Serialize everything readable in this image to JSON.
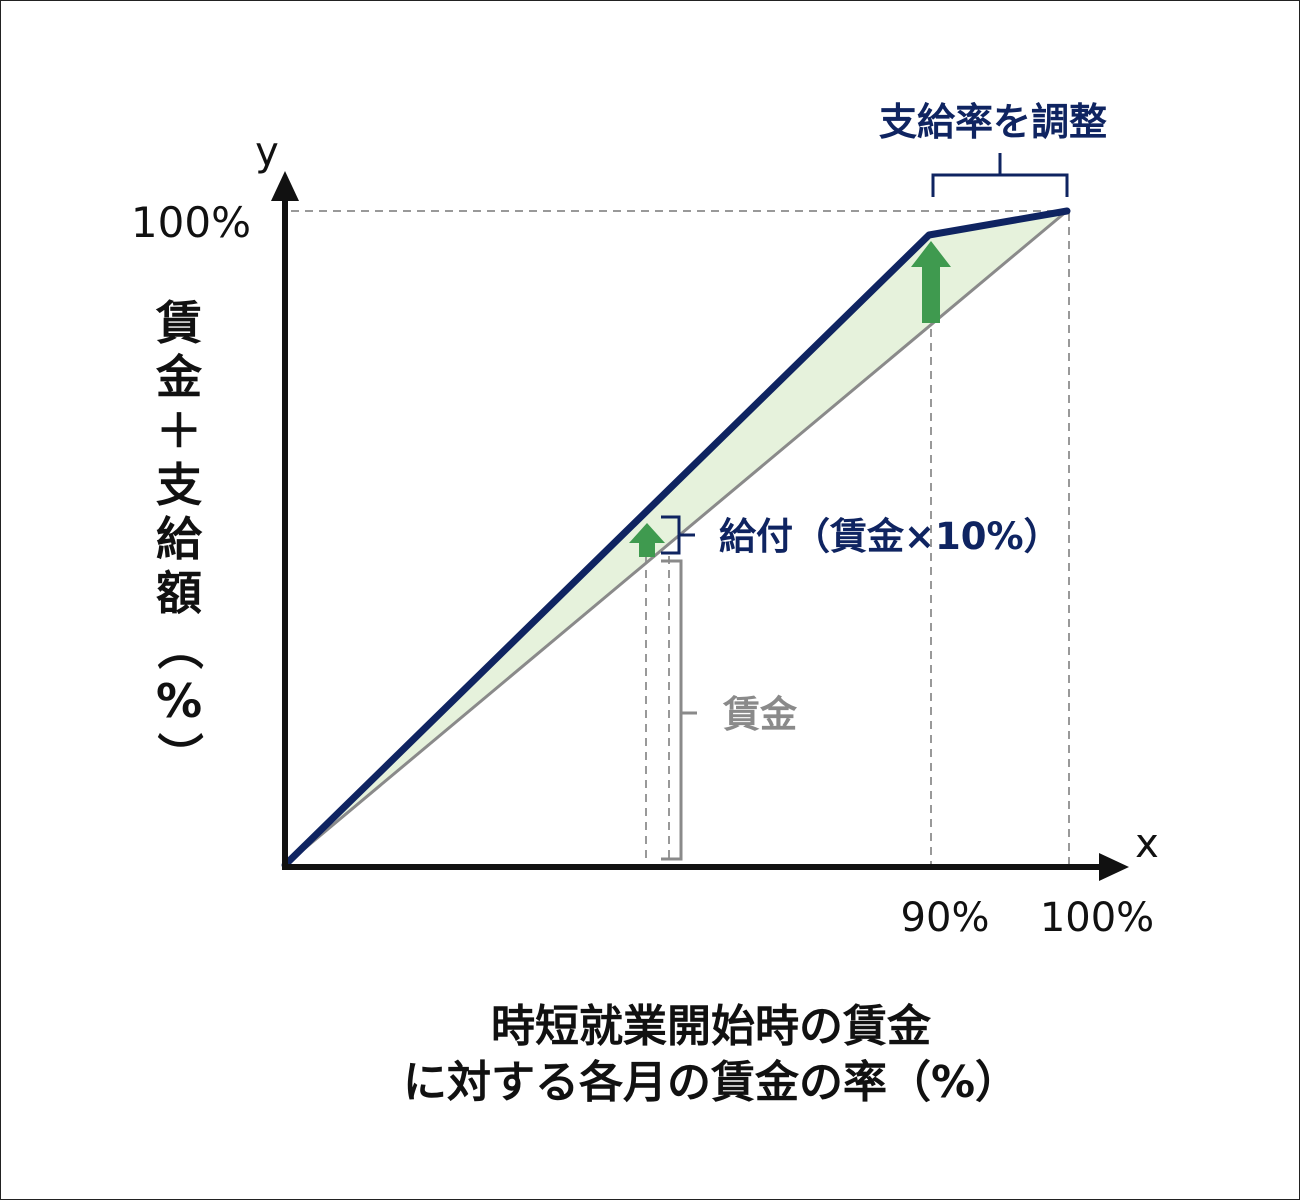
{
  "labels": {
    "y_axis_letter": "y",
    "x_axis_letter": "x",
    "y_tick_100": "100%",
    "x_tick_90": "90%",
    "x_tick_100": "100%",
    "y_axis_title": "賃金＋支給額（%）",
    "x_axis_title_line1": "時短就業開始時の賃金",
    "x_axis_title_line2": "に対する各月の賃金の率（%）",
    "adjust_rate": "支給率を調整",
    "benefit": "給付（賃金×10%）",
    "wage": "賃金"
  },
  "colors": {
    "navy": "#0f2461",
    "green_arrow": "#3f9a4f",
    "green_fill": "#e6f2dc",
    "axis": "#111111",
    "gray": "#8a8a8a",
    "dash": "#999999"
  },
  "chart_data": {
    "type": "line",
    "x_range": [
      0,
      100
    ],
    "y_range": [
      0,
      100
    ],
    "x_ticks": [
      "90%",
      "100%"
    ],
    "y_ticks": [
      "100%"
    ],
    "series": [
      {
        "x": [
          0,
          90,
          100
        ],
        "y": [
          0,
          99,
          100
        ]
      },
      {
        "x": [
          0,
          100
        ],
        "y": [
          0,
          100
        ]
      }
    ],
    "annotations": [
      "支給率を調整",
      "給付（賃金×10%）",
      "賃金"
    ]
  }
}
